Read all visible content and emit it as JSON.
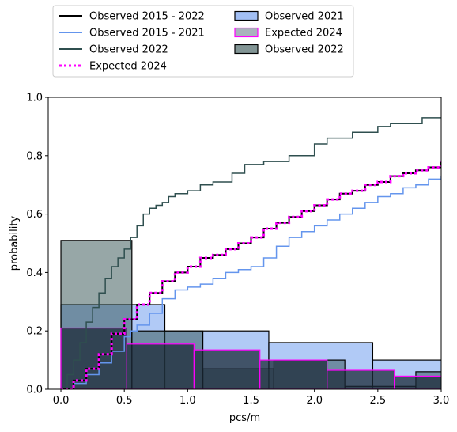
{
  "chart_data": {
    "type": "line",
    "xlabel": "pcs/m",
    "ylabel": "probability",
    "xlim": [
      -0.1,
      3.0
    ],
    "ylim": [
      0,
      1.0
    ],
    "xticks": [
      0.0,
      0.5,
      1.0,
      1.5,
      2.0,
      2.5,
      3.0
    ],
    "xtick_labels": [
      "0.0",
      "0.5",
      "1.0",
      "1.5",
      "2.0",
      "2.5",
      "3.0"
    ],
    "yticks": [
      0.0,
      0.2,
      0.4,
      0.6,
      0.8,
      1.0
    ],
    "ytick_labels": [
      "0.0",
      "0.2",
      "0.4",
      "0.6",
      "0.8",
      "1.0"
    ],
    "grid": false,
    "legend_position": "above plot, two columns",
    "legend": [
      {
        "label": "Observed 2015 - 2022",
        "kind": "line",
        "color": "#000000",
        "dashed": false
      },
      {
        "label": "Observed 2015 - 2021",
        "kind": "line",
        "color": "#6495ed",
        "dashed": false
      },
      {
        "label": "Observed 2022",
        "kind": "line",
        "color": "#2f4f4f",
        "dashed": false
      },
      {
        "label": "Expected 2024",
        "kind": "line",
        "color": "#ff00ff",
        "dashed": true
      },
      {
        "label": "Observed 2021",
        "kind": "patch",
        "fill": "#6495ed",
        "edge": "#000000"
      },
      {
        "label": "Expected 2024",
        "kind": "patch",
        "fill": "#708090",
        "edge": "#ff00ff"
      },
      {
        "label": "Observed 2022",
        "kind": "patch",
        "fill": "#2f4f4f",
        "edge": "#000000"
      }
    ],
    "histograms": [
      {
        "name": "Observed 2021",
        "fill": "#6495ed",
        "edge": "#000000",
        "opacity": 0.5,
        "edges": [
          0.0,
          0.82,
          1.64,
          2.46,
          3.28
        ],
        "heights": [
          0.29,
          0.2,
          0.16,
          0.1
        ]
      },
      {
        "name": "Observed 2022",
        "fill": "#2f4f4f",
        "edge": "#000000",
        "opacity": 0.5,
        "edges": [
          0.0,
          0.56,
          1.12,
          1.68,
          2.24,
          2.8,
          3.36
        ],
        "heights": [
          0.51,
          0.2,
          0.07,
          0.1,
          0.01,
          0.06
        ]
      },
      {
        "name": "Expected 2024",
        "fill": "#1c2b38",
        "edge": "#ff00ff",
        "opacity": 0.75,
        "edges": [
          0.0,
          0.52,
          1.05,
          1.57,
          2.1,
          2.63,
          3.15
        ],
        "heights": [
          0.21,
          0.155,
          0.135,
          0.1,
          0.065,
          0.045
        ]
      }
    ],
    "series": [
      {
        "name": "Observed 2015 - 2021",
        "color": "#6495ed",
        "width": 1.5,
        "dashed": false,
        "x": [
          0.0,
          0.1,
          0.2,
          0.3,
          0.4,
          0.5,
          0.55,
          0.6,
          0.7,
          0.8,
          0.9,
          1.0,
          1.1,
          1.2,
          1.3,
          1.4,
          1.5,
          1.6,
          1.7,
          1.8,
          1.9,
          2.0,
          2.1,
          2.2,
          2.3,
          2.4,
          2.5,
          2.6,
          2.7,
          2.8,
          2.9,
          3.0
        ],
        "y": [
          0.0,
          0.02,
          0.05,
          0.09,
          0.13,
          0.18,
          0.2,
          0.22,
          0.26,
          0.31,
          0.34,
          0.35,
          0.36,
          0.38,
          0.4,
          0.41,
          0.42,
          0.45,
          0.49,
          0.52,
          0.54,
          0.56,
          0.58,
          0.6,
          0.62,
          0.64,
          0.66,
          0.67,
          0.69,
          0.7,
          0.72,
          0.73
        ]
      },
      {
        "name": "Observed 2022",
        "color": "#2f4f4f",
        "width": 1.5,
        "dashed": false,
        "x": [
          0.0,
          0.05,
          0.1,
          0.15,
          0.2,
          0.25,
          0.3,
          0.35,
          0.4,
          0.45,
          0.5,
          0.55,
          0.6,
          0.65,
          0.7,
          0.75,
          0.8,
          0.85,
          0.9,
          1.0,
          1.1,
          1.2,
          1.35,
          1.45,
          1.6,
          1.8,
          2.0,
          2.1,
          2.3,
          2.5,
          2.6,
          2.85,
          3.0
        ],
        "y": [
          0.0,
          0.05,
          0.1,
          0.16,
          0.23,
          0.28,
          0.33,
          0.38,
          0.42,
          0.45,
          0.48,
          0.52,
          0.56,
          0.6,
          0.62,
          0.63,
          0.64,
          0.66,
          0.67,
          0.68,
          0.7,
          0.71,
          0.74,
          0.77,
          0.78,
          0.8,
          0.84,
          0.86,
          0.88,
          0.9,
          0.91,
          0.93,
          0.93
        ]
      },
      {
        "name": "Observed 2015 - 2022",
        "color": "#000000",
        "width": 2,
        "dashed": false,
        "x": [
          0.0,
          0.1,
          0.2,
          0.3,
          0.4,
          0.5,
          0.6,
          0.7,
          0.8,
          0.9,
          1.0,
          1.1,
          1.2,
          1.3,
          1.4,
          1.5,
          1.6,
          1.7,
          1.8,
          1.9,
          2.0,
          2.1,
          2.2,
          2.3,
          2.4,
          2.5,
          2.6,
          2.7,
          2.8,
          2.9,
          3.0
        ],
        "y": [
          0.0,
          0.03,
          0.07,
          0.12,
          0.19,
          0.24,
          0.29,
          0.33,
          0.37,
          0.4,
          0.42,
          0.45,
          0.46,
          0.48,
          0.5,
          0.52,
          0.55,
          0.57,
          0.59,
          0.61,
          0.63,
          0.65,
          0.67,
          0.68,
          0.7,
          0.71,
          0.73,
          0.74,
          0.75,
          0.76,
          0.78
        ]
      },
      {
        "name": "Expected 2024",
        "color": "#ff00ff",
        "width": 3,
        "dashed": true,
        "x": [
          0.0,
          0.1,
          0.2,
          0.3,
          0.4,
          0.5,
          0.6,
          0.7,
          0.8,
          0.9,
          1.0,
          1.1,
          1.2,
          1.3,
          1.4,
          1.5,
          1.6,
          1.7,
          1.8,
          1.9,
          2.0,
          2.1,
          2.2,
          2.3,
          2.4,
          2.5,
          2.6,
          2.7,
          2.8,
          2.9,
          3.0
        ],
        "y": [
          0.0,
          0.03,
          0.07,
          0.12,
          0.19,
          0.24,
          0.29,
          0.33,
          0.37,
          0.4,
          0.42,
          0.45,
          0.46,
          0.48,
          0.5,
          0.52,
          0.55,
          0.57,
          0.59,
          0.61,
          0.63,
          0.65,
          0.67,
          0.68,
          0.7,
          0.71,
          0.73,
          0.74,
          0.75,
          0.76,
          0.78
        ]
      }
    ]
  }
}
